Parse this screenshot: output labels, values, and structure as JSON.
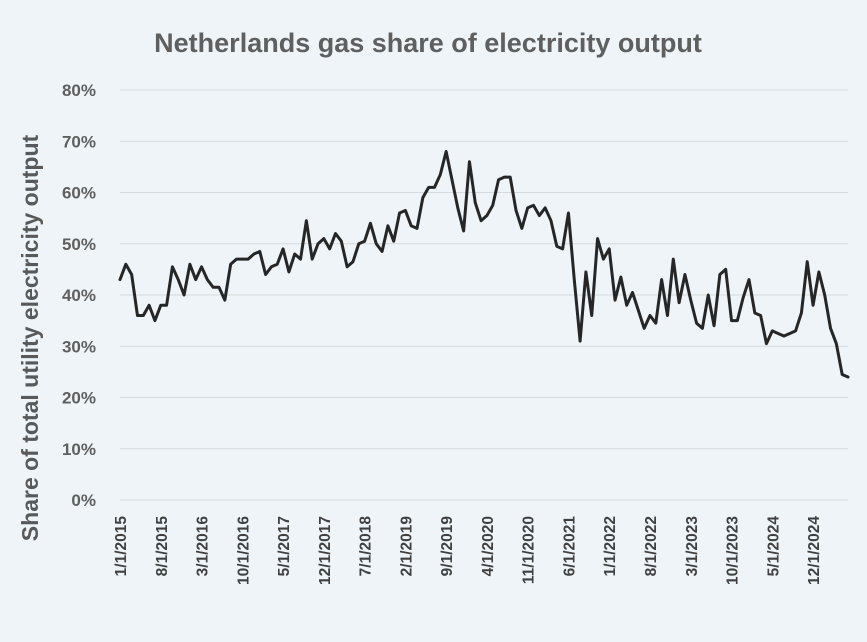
{
  "chart_data": {
    "type": "line",
    "title": "Netherlands gas share of electricity output",
    "xlabel": "",
    "ylabel": "Share of total utility electricity output",
    "ylim": [
      0,
      0.8
    ],
    "y_ticks": [
      0,
      0.1,
      0.2,
      0.3,
      0.4,
      0.5,
      0.6,
      0.7,
      0.8
    ],
    "y_tick_labels": [
      "0%",
      "10%",
      "20%",
      "30%",
      "40%",
      "50%",
      "60%",
      "70%",
      "80%"
    ],
    "x_start": "1/1/2015",
    "x_ticks": [
      {
        "label": "1/1/2015",
        "index": 0
      },
      {
        "label": "8/1/2015",
        "index": 7
      },
      {
        "label": "3/1/2016",
        "index": 14
      },
      {
        "label": "10/1/2016",
        "index": 21
      },
      {
        "label": "5/1/2017",
        "index": 28
      },
      {
        "label": "12/1/2017",
        "index": 35
      },
      {
        "label": "7/1/2018",
        "index": 42
      },
      {
        "label": "2/1/2019",
        "index": 49
      },
      {
        "label": "9/1/2019",
        "index": 56
      },
      {
        "label": "4/1/2020",
        "index": 63
      },
      {
        "label": "11/1/2020",
        "index": 70
      },
      {
        "label": "6/1/2021",
        "index": 77
      },
      {
        "label": "1/1/2022",
        "index": 84
      },
      {
        "label": "8/1/2022",
        "index": 91
      },
      {
        "label": "3/1/2023",
        "index": 98
      },
      {
        "label": "10/1/2023",
        "index": 105
      },
      {
        "label": "5/1/2024",
        "index": 112
      },
      {
        "label": "12/1/2024",
        "index": 119
      }
    ],
    "series": [
      {
        "line_color": "#262626",
        "values": [
          0.43,
          0.46,
          0.44,
          0.36,
          0.36,
          0.38,
          0.35,
          0.38,
          0.38,
          0.455,
          0.43,
          0.4,
          0.46,
          0.43,
          0.455,
          0.43,
          0.415,
          0.415,
          0.39,
          0.46,
          0.47,
          0.47,
          0.47,
          0.48,
          0.485,
          0.44,
          0.455,
          0.46,
          0.49,
          0.445,
          0.48,
          0.47,
          0.545,
          0.47,
          0.5,
          0.51,
          0.49,
          0.52,
          0.505,
          0.455,
          0.465,
          0.5,
          0.505,
          0.54,
          0.5,
          0.485,
          0.535,
          0.505,
          0.56,
          0.565,
          0.535,
          0.53,
          0.59,
          0.61,
          0.61,
          0.635,
          0.68,
          0.625,
          0.57,
          0.525,
          0.66,
          0.58,
          0.545,
          0.555,
          0.575,
          0.625,
          0.63,
          0.63,
          0.565,
          0.53,
          0.57,
          0.575,
          0.555,
          0.57,
          0.545,
          0.495,
          0.49,
          0.56,
          0.43,
          0.31,
          0.445,
          0.36,
          0.51,
          0.47,
          0.49,
          0.39,
          0.435,
          0.38,
          0.405,
          0.37,
          0.335,
          0.36,
          0.345,
          0.43,
          0.36,
          0.47,
          0.385,
          0.44,
          0.39,
          0.345,
          0.335,
          0.4,
          0.34,
          0.44,
          0.45,
          0.35,
          0.35,
          0.395,
          0.43,
          0.365,
          0.36,
          0.305,
          0.33,
          0.325,
          0.32,
          0.325,
          0.33,
          0.365,
          0.465,
          0.38,
          0.445,
          0.4,
          0.335,
          0.305,
          0.245,
          0.24
        ]
      }
    ],
    "grid": true,
    "legend": "none"
  }
}
